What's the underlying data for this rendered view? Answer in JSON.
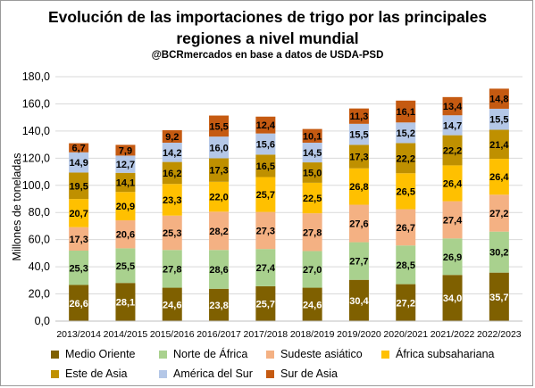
{
  "chart_data": {
    "type": "bar",
    "stacked": true,
    "title_line1": "Evolución de las importaciones de trigo por las principales",
    "title_line2": "regiones a nivel mundial",
    "subtitle": "@BCRmercados  en base a datos de USDA-PSD",
    "ylabel": "Millones de toneladas",
    "xlabel": "",
    "ylim": [
      0,
      180
    ],
    "y_ticks": [
      "0,0",
      "20,0",
      "40,0",
      "60,0",
      "80,0",
      "100,0",
      "120,0",
      "140,0",
      "160,0",
      "180,0"
    ],
    "grid": true,
    "legend_position": "bottom",
    "categories": [
      "2013/2014",
      "2014/2015",
      "2015/2016",
      "2016/2017",
      "2017/2018",
      "2018/2019",
      "2019/2020",
      "2020/2021",
      "2021/2022",
      "2022/2023"
    ],
    "series": [
      {
        "name": "Medio Oriente",
        "color": "#7f6000",
        "label_color": "#ffffff",
        "values": [
          26.6,
          28.1,
          24.6,
          23.8,
          25.7,
          24.6,
          30.4,
          27.2,
          34.0,
          35.7
        ],
        "labels": [
          "26,6",
          "28,1",
          "24,6",
          "23,8",
          "25,7",
          "24,6",
          "30,4",
          "27,2",
          "34,0",
          "35,7"
        ]
      },
      {
        "name": "Norte de África",
        "color": "#a9d18e",
        "label_color": "#000000",
        "values": [
          25.3,
          25.5,
          27.8,
          28.6,
          27.4,
          27.0,
          27.7,
          28.5,
          26.9,
          30.2
        ],
        "labels": [
          "25,3",
          "25,5",
          "27,8",
          "28,6",
          "27,4",
          "27,0",
          "27,7",
          "28,5",
          "26,9",
          "30,2"
        ]
      },
      {
        "name": "Sudeste asiático",
        "color": "#f4b183",
        "label_color": "#000000",
        "values": [
          17.3,
          20.6,
          25.3,
          28.2,
          27.3,
          27.8,
          27.6,
          26.7,
          27.4,
          27.2
        ],
        "labels": [
          "17,3",
          "20,6",
          "25,3",
          "28,2",
          "27,3",
          "27,8",
          "27,6",
          "26,7",
          "27,4",
          "27,2"
        ]
      },
      {
        "name": "África subsahariana",
        "color": "#ffc000",
        "label_color": "#000000",
        "values": [
          20.7,
          20.9,
          23.3,
          22.0,
          25.7,
          22.5,
          26.8,
          26.5,
          26.4,
          26.4
        ],
        "labels": [
          "20,7",
          "20,9",
          "23,3",
          "22,0",
          "25,7",
          "22,5",
          "26,8",
          "26,5",
          "26,4",
          "26,4"
        ]
      },
      {
        "name": "Este de Asia",
        "color": "#bf9000",
        "label_color": "#000000",
        "values": [
          19.5,
          14.1,
          16.2,
          17.3,
          16.5,
          15.0,
          17.3,
          22.2,
          22.2,
          21.4
        ],
        "labels": [
          "19,5",
          "14,1",
          "16,2",
          "17,3",
          "16,5",
          "15,0",
          "17,3",
          "22,2",
          "22,2",
          "21,4"
        ]
      },
      {
        "name": "América del Sur",
        "color": "#b4c7e7",
        "label_color": "#000000",
        "values": [
          14.9,
          12.7,
          14.2,
          16.0,
          15.6,
          14.5,
          15.5,
          15.2,
          14.7,
          15.5
        ],
        "labels": [
          "14,9",
          "12,7",
          "14,2",
          "16,0",
          "15,6",
          "14,5",
          "15,5",
          "15,2",
          "14,7",
          "15,5"
        ]
      },
      {
        "name": "Sur de Asia",
        "color": "#c55a11",
        "label_color": "#000000",
        "values": [
          6.7,
          7.9,
          9.2,
          15.5,
          12.4,
          10.1,
          11.3,
          16.1,
          13.4,
          14.8
        ],
        "labels": [
          "6,7",
          "7,9",
          "9,2",
          "15,5",
          "12,4",
          "10,1",
          "11,3",
          "16,1",
          "13,4",
          "14,8"
        ]
      }
    ]
  }
}
